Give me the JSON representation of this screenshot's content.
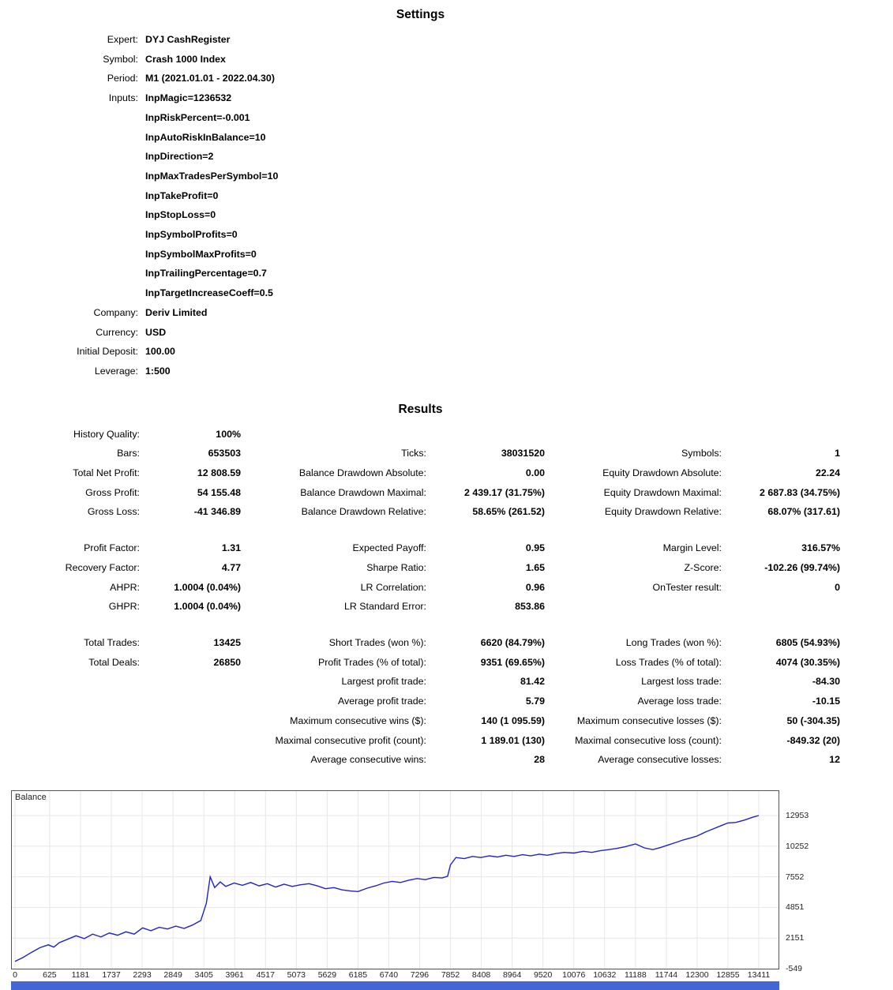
{
  "settings": {
    "title": "Settings",
    "rows": [
      {
        "label": "Expert:",
        "value": "DYJ CashRegister"
      },
      {
        "label": "Symbol:",
        "value": "Crash 1000 Index"
      },
      {
        "label": "Period:",
        "value": "M1 (2021.01.01 - 2022.04.30)"
      },
      {
        "label": "Inputs:",
        "value": "InpMagic=1236532"
      },
      {
        "label": "",
        "value": "InpRiskPercent=-0.001"
      },
      {
        "label": "",
        "value": "InpAutoRiskInBalance=10"
      },
      {
        "label": "",
        "value": "InpDirection=2"
      },
      {
        "label": "",
        "value": "InpMaxTradesPerSymbol=10"
      },
      {
        "label": "",
        "value": "InpTakeProfit=0"
      },
      {
        "label": "",
        "value": "InpStopLoss=0"
      },
      {
        "label": "",
        "value": "InpSymbolProfits=0"
      },
      {
        "label": "",
        "value": "InpSymbolMaxProfits=0"
      },
      {
        "label": "",
        "value": "InpTrailingPercentage=0.7"
      },
      {
        "label": "",
        "value": "InpTargetIncreaseCoeff=0.5"
      },
      {
        "label": "Company:",
        "value": "Deriv Limited"
      },
      {
        "label": "Currency:",
        "value": "USD"
      },
      {
        "label": "Initial Deposit:",
        "value": "100.00"
      },
      {
        "label": "Leverage:",
        "value": "1:500"
      }
    ]
  },
  "results": {
    "title": "Results",
    "rows": [
      {
        "cells": [
          {
            "label": "History Quality:",
            "value": "100%"
          },
          null,
          null
        ]
      },
      {
        "cells": [
          {
            "label": "Bars:",
            "value": "653503"
          },
          {
            "label": "Ticks:",
            "value": "38031520"
          },
          {
            "label": "Symbols:",
            "value": "1"
          }
        ]
      },
      {
        "cells": [
          {
            "label": "Total Net Profit:",
            "value": "12 808.59"
          },
          {
            "label": "Balance Drawdown Absolute:",
            "value": "0.00"
          },
          {
            "label": "Equity Drawdown Absolute:",
            "value": "22.24"
          }
        ]
      },
      {
        "cells": [
          {
            "label": "Gross Profit:",
            "value": "54 155.48"
          },
          {
            "label": "Balance Drawdown Maximal:",
            "value": "2 439.17 (31.75%)"
          },
          {
            "label": "Equity Drawdown Maximal:",
            "value": "2 687.83 (34.75%)"
          }
        ]
      },
      {
        "cells": [
          {
            "label": "Gross Loss:",
            "value": "-41 346.89"
          },
          {
            "label": "Balance Drawdown Relative:",
            "value": "58.65% (261.52)"
          },
          {
            "label": "Equity Drawdown Relative:",
            "value": "68.07% (317.61)"
          }
        ]
      },
      {
        "spacer": true
      },
      {
        "cells": [
          {
            "label": "Profit Factor:",
            "value": "1.31"
          },
          {
            "label": "Expected Payoff:",
            "value": "0.95"
          },
          {
            "label": "Margin Level:",
            "value": "316.57%"
          }
        ]
      },
      {
        "cells": [
          {
            "label": "Recovery Factor:",
            "value": "4.77"
          },
          {
            "label": "Sharpe Ratio:",
            "value": "1.65"
          },
          {
            "label": "Z-Score:",
            "value": "-102.26 (99.74%)"
          }
        ]
      },
      {
        "cells": [
          {
            "label": "AHPR:",
            "value": "1.0004 (0.04%)"
          },
          {
            "label": "LR Correlation:",
            "value": "0.96"
          },
          {
            "label": "OnTester result:",
            "value": "0"
          }
        ]
      },
      {
        "cells": [
          {
            "label": "GHPR:",
            "value": "1.0004 (0.04%)"
          },
          {
            "label": "LR Standard Error:",
            "value": "853.86"
          },
          null
        ]
      },
      {
        "spacer": true
      },
      {
        "cells": [
          {
            "label": "Total Trades:",
            "value": "13425"
          },
          {
            "label": "Short Trades (won %):",
            "value": "6620 (84.79%)"
          },
          {
            "label": "Long Trades (won %):",
            "value": "6805 (54.93%)"
          }
        ]
      },
      {
        "cells": [
          {
            "label": "Total Deals:",
            "value": "26850"
          },
          {
            "label": "Profit Trades (% of total):",
            "value": "9351 (69.65%)"
          },
          {
            "label": "Loss Trades (% of total):",
            "value": "4074 (30.35%)"
          }
        ]
      },
      {
        "cells": [
          null,
          {
            "label": "Largest profit trade:",
            "value": "81.42"
          },
          {
            "label": "Largest loss trade:",
            "value": "-84.30"
          }
        ]
      },
      {
        "cells": [
          null,
          {
            "label": "Average profit trade:",
            "value": "5.79"
          },
          {
            "label": "Average loss trade:",
            "value": "-10.15"
          }
        ]
      },
      {
        "cells": [
          null,
          {
            "label": "Maximum consecutive wins ($):",
            "value": "140 (1 095.59)"
          },
          {
            "label": "Maximum consecutive losses ($):",
            "value": "50 (-304.35)"
          }
        ]
      },
      {
        "cells": [
          null,
          {
            "label": "Maximal consecutive profit (count):",
            "value": "1 189.01 (130)"
          },
          {
            "label": "Maximal consecutive loss (count):",
            "value": "-849.32 (20)"
          }
        ]
      },
      {
        "cells": [
          null,
          {
            "label": "Average consecutive wins:",
            "value": "28"
          },
          {
            "label": "Average consecutive losses:",
            "value": "12"
          }
        ]
      }
    ]
  },
  "chart_data": {
    "type": "line",
    "title": "Balance",
    "legend_position": "top-left",
    "grid": true,
    "line_color": "#2121CE",
    "strip_color": "#4365D6",
    "grid_color": "#E7E7E7",
    "xlim": [
      0,
      13411
    ],
    "ylim": [
      -549,
      15111
    ],
    "y_ticks": [
      12953,
      10252,
      7552,
      4851,
      2151,
      -549
    ],
    "x_ticks": [
      0,
      625,
      1181,
      1737,
      2293,
      2849,
      3405,
      3961,
      4517,
      5073,
      5629,
      6185,
      6740,
      7296,
      7852,
      8408,
      8964,
      9520,
      10076,
      10632,
      11188,
      11744,
      12300,
      12855,
      13411
    ],
    "series": [
      {
        "name": "Balance",
        "x": [
          0,
          150,
          300,
          450,
          600,
          700,
          800,
          950,
          1100,
          1250,
          1400,
          1550,
          1700,
          1850,
          2000,
          2150,
          2300,
          2450,
          2600,
          2750,
          2900,
          3050,
          3200,
          3350,
          3450,
          3520,
          3600,
          3700,
          3800,
          3950,
          4100,
          4250,
          4400,
          4550,
          4700,
          4850,
          5000,
          5150,
          5300,
          5450,
          5600,
          5750,
          5900,
          6050,
          6185,
          6350,
          6500,
          6650,
          6800,
          6950,
          7100,
          7250,
          7400,
          7550,
          7700,
          7800,
          7852,
          7950,
          8100,
          8250,
          8400,
          8550,
          8700,
          8850,
          9000,
          9150,
          9300,
          9450,
          9600,
          9750,
          9900,
          10076,
          10250,
          10400,
          10550,
          10700,
          10850,
          11000,
          11188,
          11350,
          11500,
          11650,
          11744,
          11900,
          12050,
          12200,
          12300,
          12450,
          12600,
          12750,
          12855,
          13000,
          13150,
          13300,
          13411
        ],
        "y": [
          100,
          450,
          900,
          1300,
          1550,
          1350,
          1750,
          2050,
          2350,
          2100,
          2500,
          2250,
          2600,
          2400,
          2700,
          2500,
          3050,
          2800,
          3100,
          2950,
          3200,
          3000,
          3300,
          3700,
          5200,
          7550,
          6600,
          7100,
          6700,
          7000,
          6800,
          7050,
          6750,
          6950,
          6650,
          6900,
          6700,
          6850,
          6950,
          6750,
          6500,
          6600,
          6400,
          6300,
          6250,
          6550,
          6750,
          7000,
          7150,
          7050,
          7250,
          7400,
          7300,
          7500,
          7450,
          7600,
          8600,
          9250,
          9150,
          9350,
          9250,
          9400,
          9300,
          9450,
          9350,
          9500,
          9400,
          9550,
          9450,
          9600,
          9700,
          9650,
          9800,
          9700,
          9850,
          9950,
          10050,
          10200,
          10450,
          10100,
          9950,
          10150,
          10300,
          10550,
          10800,
          11000,
          11150,
          11500,
          11800,
          12100,
          12300,
          12350,
          12550,
          12800,
          12950
        ]
      }
    ]
  }
}
